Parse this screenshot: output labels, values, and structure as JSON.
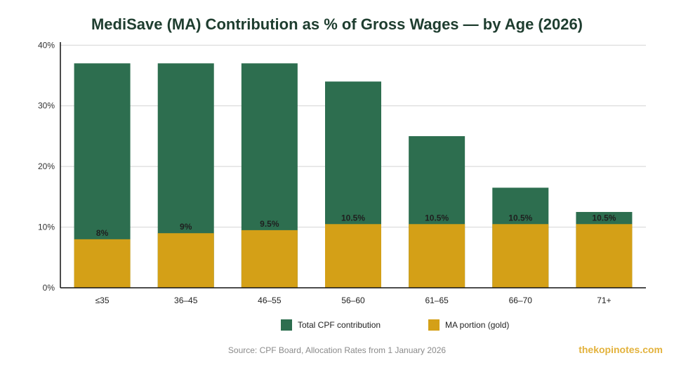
{
  "chart_data": {
    "type": "bar",
    "title": "MediSave (MA) Contribution as % of Gross Wages — by Age (2026)",
    "categories": [
      "≤35",
      "36–45",
      "46–55",
      "56–60",
      "61–65",
      "66–70",
      "71+"
    ],
    "series": [
      {
        "name": "Total CPF contribution",
        "values": [
          37,
          37,
          37,
          34,
          25,
          16.5,
          12.5
        ],
        "color": "#2d6e4f"
      },
      {
        "name": "MA portion (gold)",
        "values": [
          8,
          9,
          9.5,
          10.5,
          10.5,
          10.5,
          10.5
        ],
        "color": "#d4a017"
      }
    ],
    "data_labels": [
      "8%",
      "9%",
      "9.5%",
      "10.5%",
      "10.5%",
      "10.5%",
      "10.5%"
    ],
    "y_ticks": [
      0,
      10,
      20,
      30,
      40
    ],
    "y_tick_labels": [
      "0%",
      "10%",
      "20%",
      "30%",
      "40%"
    ],
    "ylim": [
      0,
      40
    ],
    "grid": true,
    "legend_position": "bottom",
    "source": "Source: CPF Board, Allocation Rates from 1 January 2026",
    "brand": "thekopinotes.com"
  }
}
